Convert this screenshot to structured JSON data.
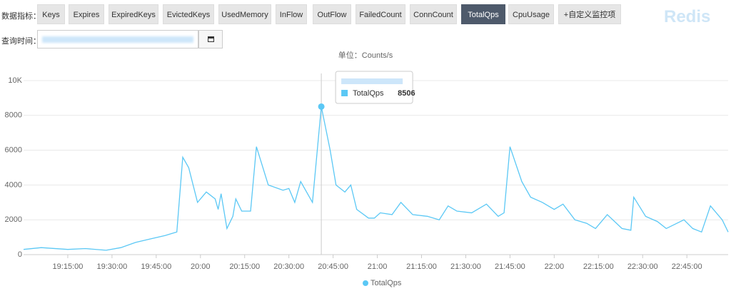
{
  "toolbar": {
    "label": "数据指标：",
    "tabs": [
      "Keys",
      "Expires",
      "ExpiredKeys",
      "EvictedKeys",
      "UsedMemory",
      "InFlow",
      "OutFlow",
      "FailedCount",
      "ConnCount",
      "TotalQps",
      "CpuUsage",
      "+自定义监控项"
    ],
    "active": 9
  },
  "brand": "Redis",
  "query": {
    "label": "查询时间："
  },
  "chart_data": {
    "type": "line",
    "subtitle": "单位：Counts/s",
    "x": [
      1140,
      1146,
      1155,
      1161,
      1168,
      1173,
      1178,
      1183,
      1188,
      1192,
      1194,
      1196,
      1199,
      1202,
      1205,
      1206,
      1207,
      1209,
      1211,
      1212,
      1214,
      1217,
      1219,
      1223,
      1228,
      1230,
      1232,
      1234,
      1238,
      1241,
      1244,
      1246,
      1249,
      1251,
      1253,
      1257,
      1259,
      1261,
      1265,
      1268,
      1272,
      1277,
      1281,
      1284,
      1287,
      1292,
      1297,
      1301,
      1303,
      1305,
      1309,
      1312,
      1316,
      1320,
      1323,
      1327,
      1331,
      1334,
      1338,
      1343,
      1346,
      1347,
      1351,
      1355,
      1358,
      1364,
      1367,
      1370,
      1373,
      1377,
      1379
    ],
    "series": [
      {
        "name": "TotalQps",
        "color": "#5bc8f5",
        "values": [
          300,
          400,
          300,
          350,
          250,
          400,
          700,
          900,
          1100,
          1300,
          5600,
          5000,
          3000,
          3600,
          3200,
          2600,
          3500,
          1500,
          2200,
          3200,
          2500,
          2500,
          6200,
          4000,
          3700,
          3800,
          3000,
          4200,
          3000,
          8506,
          6000,
          4000,
          3600,
          4000,
          2600,
          2100,
          2100,
          2400,
          2300,
          3000,
          2300,
          2200,
          2000,
          2800,
          2500,
          2400,
          2900,
          2200,
          2400,
          6200,
          4200,
          3300,
          3000,
          2600,
          2900,
          2000,
          1800,
          1500,
          2300,
          1500,
          1400,
          3300,
          2200,
          1900,
          1500,
          2000,
          1500,
          1300,
          2800,
          2000,
          1300
        ]
      }
    ],
    "xlim": [
      1140,
      1379
    ],
    "xticks": [
      {
        "value": 1155,
        "label": "19:15:00"
      },
      {
        "value": 1170,
        "label": "19:30:00"
      },
      {
        "value": 1185,
        "label": "19:45:00"
      },
      {
        "value": 1200,
        "label": "20:00"
      },
      {
        "value": 1215,
        "label": "20:15:00"
      },
      {
        "value": 1230,
        "label": "20:30:00"
      },
      {
        "value": 1245,
        "label": "20:45:00"
      },
      {
        "value": 1260,
        "label": "21:00"
      },
      {
        "value": 1275,
        "label": "21:15:00"
      },
      {
        "value": 1290,
        "label": "21:30:00"
      },
      {
        "value": 1305,
        "label": "21:45:00"
      },
      {
        "value": 1320,
        "label": "22:00"
      },
      {
        "value": 1335,
        "label": "22:15:00"
      },
      {
        "value": 1350,
        "label": "22:30:00"
      },
      {
        "value": 1365,
        "label": "22:45:00"
      }
    ],
    "ylim": [
      0,
      10000
    ],
    "yticks": [
      0,
      2000,
      4000,
      6000,
      8000,
      {
        "value": 10000,
        "label": "10K"
      }
    ],
    "grid": true,
    "legend": "bottom",
    "tooltip_point": 29
  }
}
